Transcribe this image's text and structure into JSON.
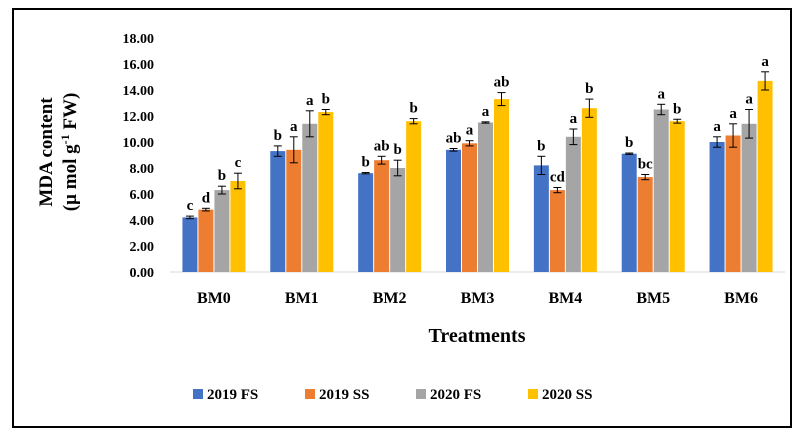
{
  "chart_data": {
    "type": "bar",
    "title": "",
    "xlabel": "Treatments",
    "ylabel_line1": "MDA content",
    "ylabel_line2_pre": "(µ mol g",
    "ylabel_line2_sup": "-1",
    "ylabel_line2_post": " FW)",
    "ylim": [
      0,
      18
    ],
    "yticks": [
      "0.00",
      "2.00",
      "4.00",
      "6.00",
      "8.00",
      "10.00",
      "12.00",
      "14.00",
      "16.00",
      "18.00"
    ],
    "categories": [
      "BM0",
      "BM1",
      "BM2",
      "BM3",
      "BM4",
      "BM5",
      "BM6"
    ],
    "grid": false,
    "legend_position": "bottom",
    "series": [
      {
        "name": "2019 FS",
        "color": "#4472C4",
        "values": [
          4.2,
          9.3,
          7.6,
          9.4,
          8.2,
          9.1,
          10.0
        ],
        "errors": [
          0.1,
          0.4,
          0.05,
          0.1,
          0.7,
          0.05,
          0.4
        ],
        "letters": [
          "c",
          "b",
          "b",
          "ab",
          "b",
          "b",
          "a"
        ]
      },
      {
        "name": "2019 SS",
        "color": "#ED7D31",
        "values": [
          4.8,
          9.4,
          8.6,
          9.9,
          6.3,
          7.3,
          10.5
        ],
        "errors": [
          0.1,
          1.0,
          0.3,
          0.2,
          0.2,
          0.2,
          0.9
        ],
        "letters": [
          "d",
          "a",
          "ab",
          "a",
          "cd",
          "bc",
          "a"
        ]
      },
      {
        "name": "2020 FS",
        "color": "#A5A5A5",
        "values": [
          6.3,
          11.4,
          8.0,
          11.5,
          10.4,
          12.5,
          11.4
        ],
        "errors": [
          0.3,
          1.0,
          0.6,
          0.05,
          0.6,
          0.4,
          1.1
        ],
        "letters": [
          "b",
          "a",
          "b",
          "a",
          "a",
          "a",
          "a"
        ]
      },
      {
        "name": "2020 SS",
        "color": "#FFC000",
        "values": [
          7.0,
          12.3,
          11.6,
          13.3,
          12.6,
          11.6,
          14.7
        ],
        "errors": [
          0.6,
          0.2,
          0.2,
          0.5,
          0.7,
          0.15,
          0.7
        ],
        "letters": [
          "c",
          "b",
          "b",
          "ab",
          "b",
          "b",
          "a"
        ]
      }
    ]
  }
}
